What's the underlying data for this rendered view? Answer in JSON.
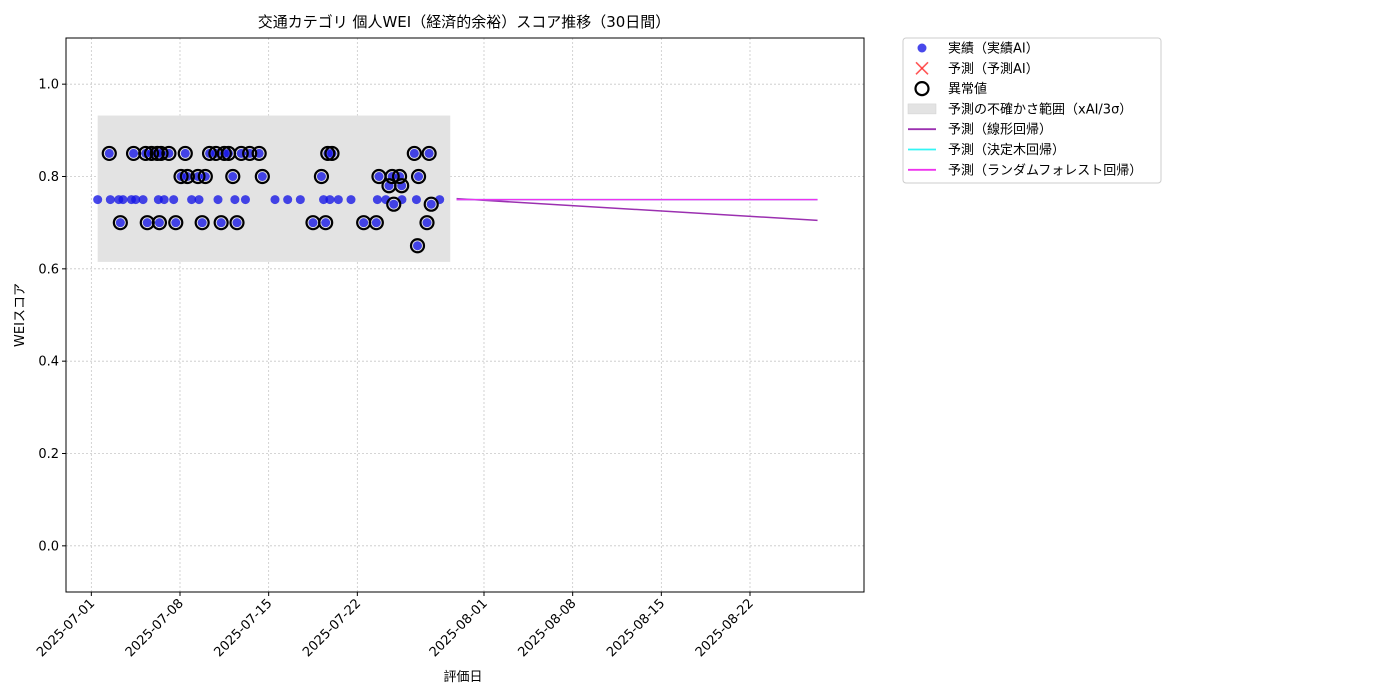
{
  "chart_data": {
    "type": "scatter",
    "title": "交通カテゴリ 個人WEI（経済的余裕）スコア推移（30日間）",
    "xlabel": "評価日",
    "ylabel": "WEIスコア",
    "xlim": [
      "2025-06-29",
      "2025-08-31"
    ],
    "ylim": [
      -0.1,
      1.1
    ],
    "yticks": [
      0.0,
      0.2,
      0.4,
      0.6,
      0.8,
      1.0
    ],
    "yticklabels": [
      "0.0",
      "0.2",
      "0.4",
      "0.6",
      "0.8",
      "1.0"
    ],
    "xticks": [
      "2025-07-01",
      "2025-07-08",
      "2025-07-15",
      "2025-07-22",
      "2025-08-01",
      "2025-08-08",
      "2025-08-15",
      "2025-08-22"
    ],
    "grid": true,
    "legend_position": "outside-upper-right",
    "uncertainty_band": {
      "name": "予測の不確かさ範囲（xAI/3σ）",
      "x_start": "2025-07-01T12:00",
      "x_end": "2025-07-29T08:00",
      "y_low": 0.615,
      "y_high": 0.932,
      "color": "#e3e3e3"
    },
    "actual": {
      "name": "実績（実績AI）",
      "color": "#1414e6",
      "points": [
        [
          "2025-07-01T12:00",
          0.75
        ],
        [
          "2025-07-02T10:00",
          0.85
        ],
        [
          "2025-07-02T12:00",
          0.75
        ],
        [
          "2025-07-03T04:00",
          0.75
        ],
        [
          "2025-07-03T07:00",
          0.7
        ],
        [
          "2025-07-03T12:00",
          0.75
        ],
        [
          "2025-07-04T04:00",
          0.75
        ],
        [
          "2025-07-04T08:00",
          0.85
        ],
        [
          "2025-07-04T12:00",
          0.75
        ],
        [
          "2025-07-05T02:00",
          0.75
        ],
        [
          "2025-07-05T07:00",
          0.85
        ],
        [
          "2025-07-05T10:00",
          0.7
        ],
        [
          "2025-07-05T18:00",
          0.85
        ],
        [
          "2025-07-06T05:00",
          0.85
        ],
        [
          "2025-07-06T07:00",
          0.75
        ],
        [
          "2025-07-06T09:00",
          0.7
        ],
        [
          "2025-07-06T12:00",
          0.85
        ],
        [
          "2025-07-06T18:00",
          0.75
        ],
        [
          "2025-07-07T03:00",
          0.85
        ],
        [
          "2025-07-07T12:00",
          0.75
        ],
        [
          "2025-07-07T16:00",
          0.7
        ],
        [
          "2025-07-08T02:00",
          0.8
        ],
        [
          "2025-07-08T10:00",
          0.85
        ],
        [
          "2025-07-08T14:00",
          0.8
        ],
        [
          "2025-07-08T22:00",
          0.75
        ],
        [
          "2025-07-09T10:00",
          0.8
        ],
        [
          "2025-07-09T12:00",
          0.75
        ],
        [
          "2025-07-09T18:00",
          0.7
        ],
        [
          "2025-07-10T00:00",
          0.8
        ],
        [
          "2025-07-10T08:00",
          0.85
        ],
        [
          "2025-07-10T20:00",
          0.85
        ],
        [
          "2025-07-11T00:00",
          0.75
        ],
        [
          "2025-07-11T06:00",
          0.7
        ],
        [
          "2025-07-11T12:00",
          0.85
        ],
        [
          "2025-07-11T20:00",
          0.85
        ],
        [
          "2025-07-12T04:00",
          0.8
        ],
        [
          "2025-07-12T08:00",
          0.75
        ],
        [
          "2025-07-12T12:00",
          0.7
        ],
        [
          "2025-07-12T20:00",
          0.85
        ],
        [
          "2025-07-13T04:00",
          0.75
        ],
        [
          "2025-07-13T12:00",
          0.85
        ],
        [
          "2025-07-14T06:00",
          0.85
        ],
        [
          "2025-07-14T12:00",
          0.8
        ],
        [
          "2025-07-15T12:00",
          0.75
        ],
        [
          "2025-07-16T12:00",
          0.75
        ],
        [
          "2025-07-17T12:00",
          0.75
        ],
        [
          "2025-07-18T12:00",
          0.7
        ],
        [
          "2025-07-19T04:00",
          0.8
        ],
        [
          "2025-07-19T08:00",
          0.75
        ],
        [
          "2025-07-19T12:00",
          0.7
        ],
        [
          "2025-07-19T16:00",
          0.85
        ],
        [
          "2025-07-19T20:00",
          0.75
        ],
        [
          "2025-07-20T00:00",
          0.85
        ],
        [
          "2025-07-20T12:00",
          0.75
        ],
        [
          "2025-07-21T12:00",
          0.75
        ],
        [
          "2025-07-22T12:00",
          0.7
        ],
        [
          "2025-07-23T12:00",
          0.7
        ],
        [
          "2025-07-23T14:00",
          0.75
        ],
        [
          "2025-07-23T17:00",
          0.8
        ],
        [
          "2025-07-24T06:00",
          0.75
        ],
        [
          "2025-07-24T12:00",
          0.78
        ],
        [
          "2025-07-24T18:00",
          0.8
        ],
        [
          "2025-07-24T21:00",
          0.74
        ],
        [
          "2025-07-25T08:00",
          0.8
        ],
        [
          "2025-07-25T12:00",
          0.78
        ],
        [
          "2025-07-25T12:30",
          0.75
        ],
        [
          "2025-07-26T12:00",
          0.85
        ],
        [
          "2025-07-26T16:00",
          0.75
        ],
        [
          "2025-07-26T18:00",
          0.65
        ],
        [
          "2025-07-26T20:00",
          0.8
        ],
        [
          "2025-07-27T12:00",
          0.7
        ],
        [
          "2025-07-27T16:00",
          0.85
        ],
        [
          "2025-07-27T20:00",
          0.74
        ],
        [
          "2025-07-28T12:00",
          0.75
        ]
      ]
    },
    "predicted_ai": {
      "name": "予測（予測AI）",
      "color": "#ff2a2a",
      "points": []
    },
    "anomalies": {
      "name": "異常値",
      "color": "#000000",
      "points": [
        [
          "2025-07-02T10:00",
          0.85
        ],
        [
          "2025-07-03T07:00",
          0.7
        ],
        [
          "2025-07-04T08:00",
          0.85
        ],
        [
          "2025-07-05T07:00",
          0.85
        ],
        [
          "2025-07-05T10:00",
          0.7
        ],
        [
          "2025-07-05T18:00",
          0.85
        ],
        [
          "2025-07-06T05:00",
          0.85
        ],
        [
          "2025-07-06T09:00",
          0.7
        ],
        [
          "2025-07-06T12:00",
          0.85
        ],
        [
          "2025-07-07T03:00",
          0.85
        ],
        [
          "2025-07-07T16:00",
          0.7
        ],
        [
          "2025-07-08T02:00",
          0.8
        ],
        [
          "2025-07-08T10:00",
          0.85
        ],
        [
          "2025-07-08T14:00",
          0.8
        ],
        [
          "2025-07-09T10:00",
          0.8
        ],
        [
          "2025-07-09T18:00",
          0.7
        ],
        [
          "2025-07-10T00:00",
          0.8
        ],
        [
          "2025-07-10T08:00",
          0.85
        ],
        [
          "2025-07-10T20:00",
          0.85
        ],
        [
          "2025-07-11T06:00",
          0.7
        ],
        [
          "2025-07-11T12:00",
          0.85
        ],
        [
          "2025-07-11T20:00",
          0.85
        ],
        [
          "2025-07-12T04:00",
          0.8
        ],
        [
          "2025-07-12T12:00",
          0.7
        ],
        [
          "2025-07-12T20:00",
          0.85
        ],
        [
          "2025-07-13T12:00",
          0.85
        ],
        [
          "2025-07-14T06:00",
          0.85
        ],
        [
          "2025-07-14T12:00",
          0.8
        ],
        [
          "2025-07-18T12:00",
          0.7
        ],
        [
          "2025-07-19T04:00",
          0.8
        ],
        [
          "2025-07-19T12:00",
          0.7
        ],
        [
          "2025-07-19T16:00",
          0.85
        ],
        [
          "2025-07-20T00:00",
          0.85
        ],
        [
          "2025-07-22T12:00",
          0.7
        ],
        [
          "2025-07-23T12:00",
          0.7
        ],
        [
          "2025-07-23T17:00",
          0.8
        ],
        [
          "2025-07-24T12:00",
          0.78
        ],
        [
          "2025-07-24T18:00",
          0.8
        ],
        [
          "2025-07-24T21:00",
          0.74
        ],
        [
          "2025-07-25T08:00",
          0.8
        ],
        [
          "2025-07-25T12:00",
          0.78
        ],
        [
          "2025-07-26T12:00",
          0.85
        ],
        [
          "2025-07-26T18:00",
          0.65
        ],
        [
          "2025-07-26T20:00",
          0.8
        ],
        [
          "2025-07-27T12:00",
          0.7
        ],
        [
          "2025-07-27T16:00",
          0.85
        ],
        [
          "2025-07-27T20:00",
          0.74
        ]
      ]
    },
    "forecast_lines": [
      {
        "name": "予測（線形回帰）",
        "color": "#9b30b0",
        "points": [
          [
            "2025-07-29T20:00",
            0.752
          ],
          [
            "2025-08-27T08:00",
            0.705
          ]
        ]
      },
      {
        "name": "予測（決定木回帰）",
        "color": "#33f5f5",
        "points": [
          [
            "2025-07-29T20:00",
            0.75
          ],
          [
            "2025-08-27T08:00",
            0.75
          ]
        ]
      },
      {
        "name": "予測（ランダムフォレスト回帰）",
        "color": "#ee33ee",
        "points": [
          [
            "2025-07-29T20:00",
            0.75
          ],
          [
            "2025-08-27T08:00",
            0.75
          ]
        ]
      }
    ],
    "legend": [
      {
        "key": "actual",
        "label": "実績（実績AI）",
        "marker": "dot",
        "color": "#1414e6"
      },
      {
        "key": "predicted_ai",
        "label": "予測（予測AI）",
        "marker": "x",
        "color": "#ff2a2a"
      },
      {
        "key": "anomalies",
        "label": "異常値",
        "marker": "ring",
        "color": "#000000"
      },
      {
        "key": "band",
        "label": "予測の不確かさ範囲（xAI/3σ）",
        "marker": "patch",
        "color": "#e3e3e3"
      },
      {
        "key": "linear",
        "label": "予測（線形回帰）",
        "marker": "line",
        "color": "#9b30b0"
      },
      {
        "key": "tree",
        "label": "予測（決定木回帰）",
        "marker": "line",
        "color": "#33f5f5"
      },
      {
        "key": "forest",
        "label": "予測（ランダムフォレスト回帰）",
        "marker": "line",
        "color": "#ee33ee"
      }
    ]
  }
}
